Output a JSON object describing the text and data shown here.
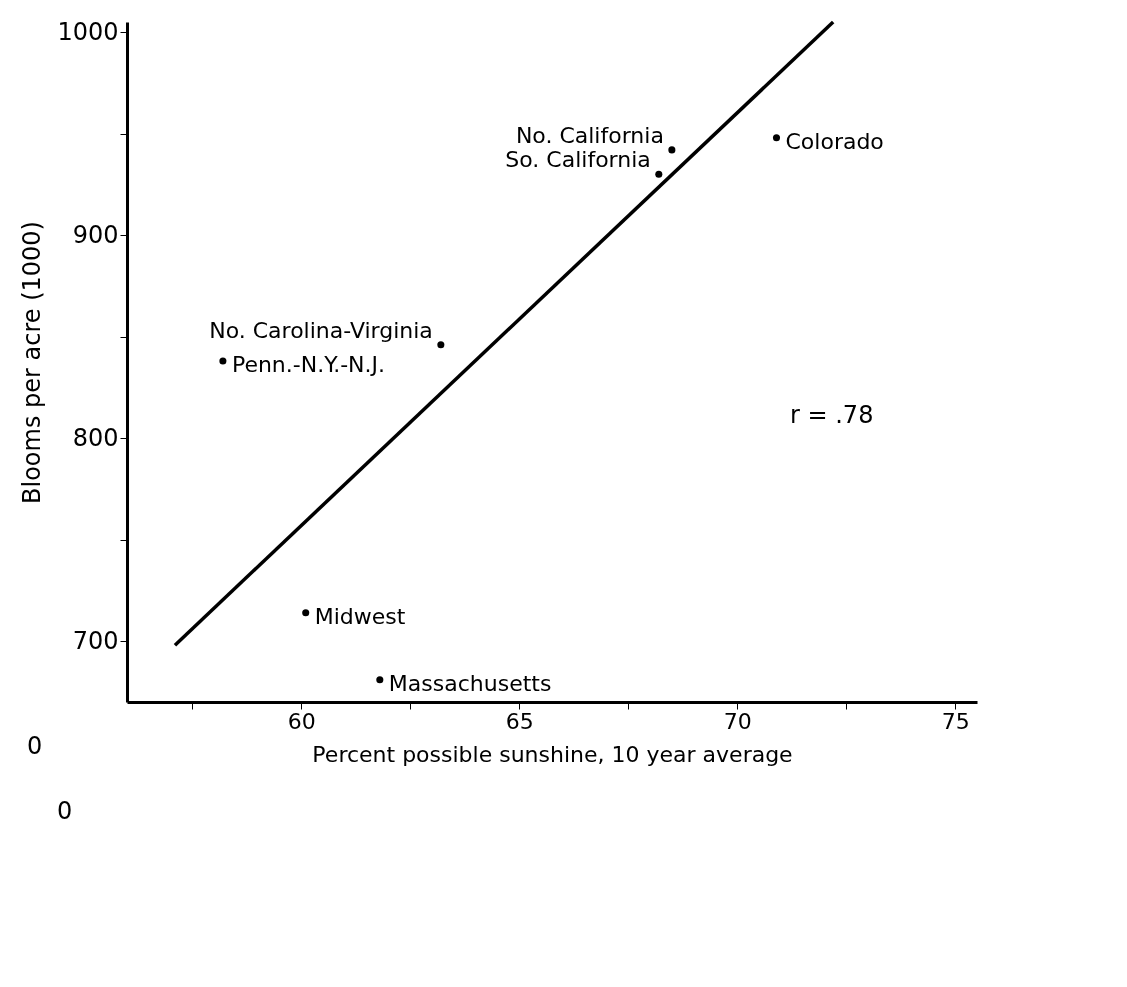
{
  "chart_data": {
    "type": "scatter",
    "xlabel": "Percent possible sunshine, 10 year average",
    "ylabel": "Blooms per acre (1000)",
    "xlim": [
      56,
      75.5
    ],
    "ylim": [
      670,
      1005
    ],
    "xticks": [
      60,
      65,
      70,
      75,
      {
        "value": 57.5,
        "label": null
      },
      {
        "value": 62.5,
        "label": null
      },
      {
        "value": 67.5,
        "label": null
      },
      {
        "value": 72.5,
        "label": null
      }
    ],
    "yticks": [
      700,
      800,
      900,
      1000,
      {
        "value": 750,
        "label": null
      },
      {
        "value": 850,
        "label": null
      },
      {
        "value": 950,
        "label": null
      }
    ],
    "grid": false,
    "series": [
      {
        "color": "#000000",
        "marker": "circle",
        "x": [
          58.2,
          60.1,
          61.8,
          63.2,
          68.2,
          68.5,
          70.9
        ],
        "values": [
          838,
          714,
          681,
          846,
          930,
          942,
          948
        ]
      },
      {
        "type": "line",
        "color": "#000000",
        "x": [
          57.1,
          72.2
        ],
        "values": [
          698,
          1005
        ],
        "line_style": "solid",
        "marker": "none"
      }
    ],
    "annotations": [
      {
        "text": "Penn.-N.Y.-N.J.",
        "x": 58.2,
        "y": 838
      },
      {
        "text": "Midwest",
        "x": 60.1,
        "y": 714
      },
      {
        "text": "Massachusetts",
        "x": 61.8,
        "y": 681
      },
      {
        "text": "No. Carolina-Virginia",
        "x": 63.2,
        "y": 846
      },
      {
        "text": "So. California",
        "x": 68.2,
        "y": 930
      },
      {
        "text": "No. California",
        "x": 68.5,
        "y": 942
      },
      {
        "text": "Colorado",
        "x": 70.9,
        "y": 948
      },
      "r = .78",
      "0",
      "0"
    ]
  }
}
